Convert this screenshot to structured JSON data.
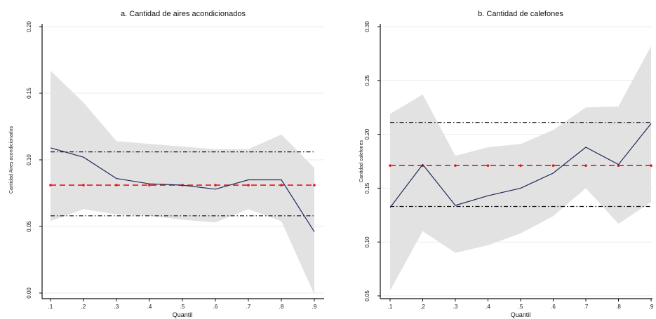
{
  "chart_data": [
    {
      "type": "line",
      "title": "a. Cantidad de aires acondicionados",
      "xlabel": "Quantil",
      "ylabel": "Cantidad Aires acondicionados",
      "x": [
        0.1,
        0.2,
        0.3,
        0.4,
        0.5,
        0.6,
        0.7,
        0.8,
        0.9
      ],
      "x_tick_labels": [
        ".1",
        ".2",
        ".3",
        ".4",
        ".5",
        ".6",
        ".7",
        ".8",
        ".9"
      ],
      "y_ticks": [
        0,
        0.05,
        0.1,
        0.15,
        0.2
      ],
      "y_tick_labels": [
        "0.00",
        "0.05",
        "0.10",
        "0.15",
        "0.20"
      ],
      "ylim": [
        0,
        0.2
      ],
      "grid": true,
      "series": [
        {
          "role": "estimate",
          "values": [
            0.109,
            0.102,
            0.086,
            0.082,
            0.081,
            0.078,
            0.085,
            0.085,
            0.046
          ]
        },
        {
          "role": "ci_upper",
          "values": [
            0.167,
            0.143,
            0.114,
            0.112,
            0.11,
            0.108,
            0.108,
            0.119,
            0.094
          ]
        },
        {
          "role": "ci_lower",
          "values": [
            0.054,
            0.063,
            0.059,
            0.058,
            0.055,
            0.053,
            0.063,
            0.054,
            -0.001
          ]
        },
        {
          "role": "ols",
          "values": [
            0.081,
            0.081,
            0.081,
            0.081,
            0.081,
            0.081,
            0.081,
            0.081,
            0.081
          ]
        },
        {
          "role": "ols_ci_upper",
          "values": [
            0.106,
            0.106,
            0.106,
            0.106,
            0.106,
            0.106,
            0.106,
            0.106,
            0.106
          ]
        },
        {
          "role": "ols_ci_lower",
          "values": [
            0.058,
            0.058,
            0.058,
            0.058,
            0.058,
            0.058,
            0.058,
            0.058,
            0.058
          ]
        }
      ],
      "colors": {
        "estimate": "#1f2a5a",
        "band": "#e2e2e2",
        "ols": "#e8161c",
        "ols_ci": "#111111",
        "grid": "#e6eef2"
      }
    },
    {
      "type": "line",
      "title": "b. Cantidad de calefones",
      "xlabel": "Quantil",
      "ylabel": "Cantidad calefones",
      "x": [
        0.1,
        0.2,
        0.3,
        0.4,
        0.5,
        0.6,
        0.7,
        0.8,
        0.9
      ],
      "x_tick_labels": [
        ".1",
        ".2",
        ".3",
        ".4",
        ".5",
        ".6",
        ".7",
        ".8",
        ".9"
      ],
      "y_ticks": [
        0.05,
        0.1,
        0.15,
        0.2,
        0.25,
        0.3
      ],
      "y_tick_labels": [
        "0.05",
        "0.10",
        "0.15",
        "0.20",
        "0.25",
        "0.30"
      ],
      "ylim": [
        0.05,
        0.3
      ],
      "grid": true,
      "series": [
        {
          "role": "estimate",
          "values": [
            0.132,
            0.172,
            0.134,
            0.143,
            0.15,
            0.164,
            0.188,
            0.172,
            0.21
          ]
        },
        {
          "role": "ci_upper",
          "values": [
            0.219,
            0.237,
            0.18,
            0.188,
            0.191,
            0.204,
            0.225,
            0.226,
            0.282
          ]
        },
        {
          "role": "ci_lower",
          "values": [
            0.055,
            0.11,
            0.09,
            0.097,
            0.108,
            0.124,
            0.15,
            0.117,
            0.137
          ]
        },
        {
          "role": "ols",
          "values": [
            0.171,
            0.171,
            0.171,
            0.171,
            0.171,
            0.171,
            0.171,
            0.171,
            0.171
          ]
        },
        {
          "role": "ols_ci_upper",
          "values": [
            0.211,
            0.211,
            0.211,
            0.211,
            0.211,
            0.211,
            0.211,
            0.211,
            0.211
          ]
        },
        {
          "role": "ols_ci_lower",
          "values": [
            0.133,
            0.133,
            0.133,
            0.133,
            0.133,
            0.133,
            0.133,
            0.133,
            0.133
          ]
        }
      ],
      "colors": {
        "estimate": "#1f2a5a",
        "band": "#e2e2e2",
        "ols": "#e8161c",
        "ols_ci": "#111111",
        "grid": "#e6eef2"
      }
    }
  ]
}
